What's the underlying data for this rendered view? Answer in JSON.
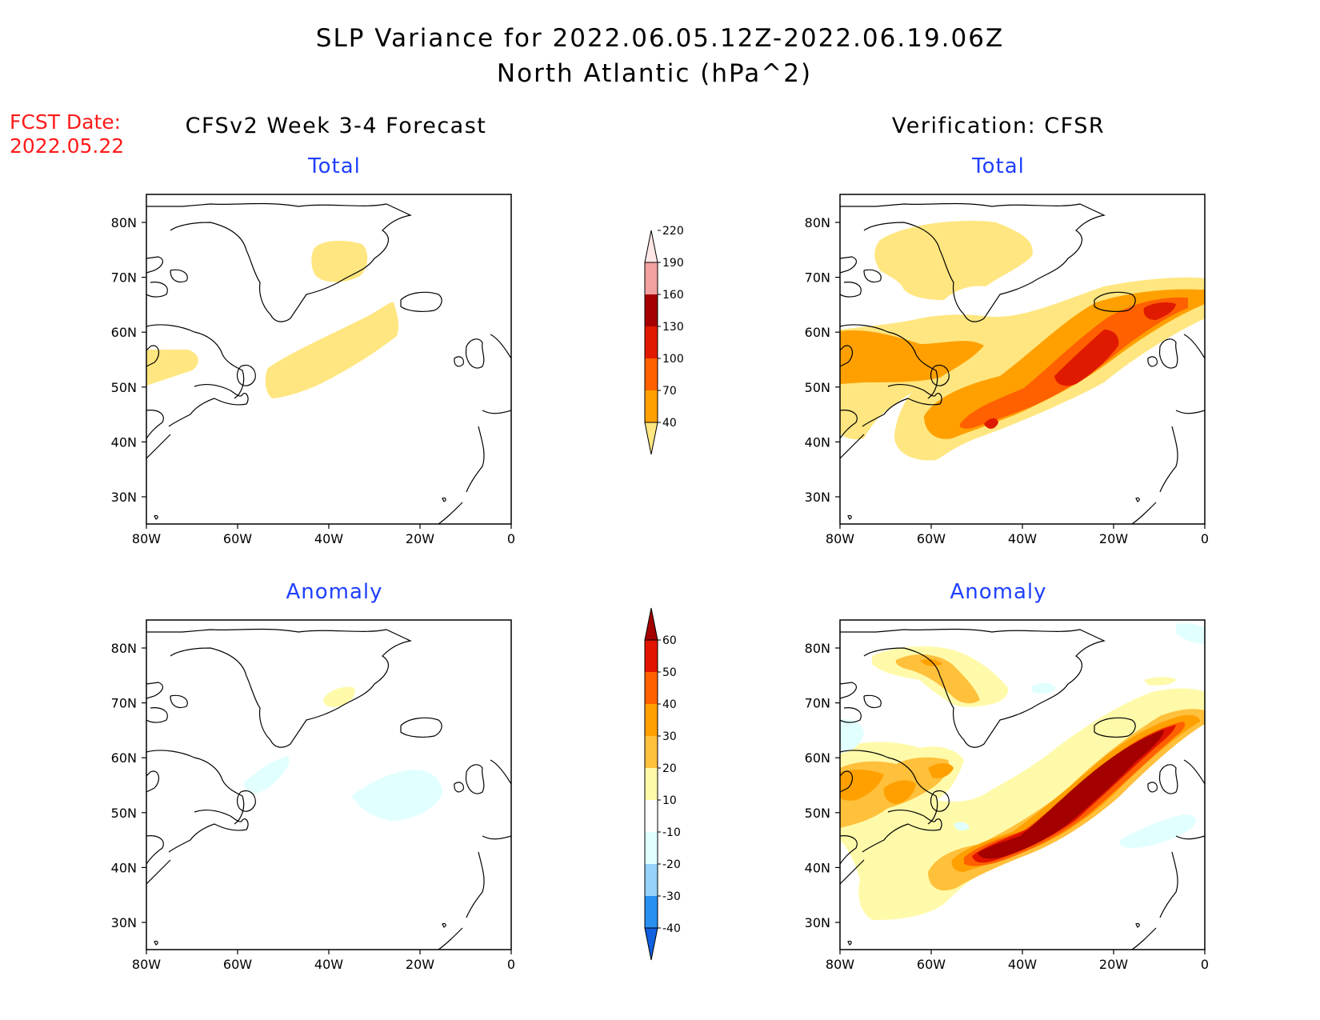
{
  "header": {
    "title_line1": "SLP Variance for 2022.06.05.12Z-2022.06.19.06Z",
    "title_line2": "North Atlantic (hPa^2)",
    "fcst_label": "FCST Date:",
    "fcst_date": "2022.05.22",
    "left_column_title": "CFSv2 Week 3-4 Forecast",
    "right_column_title": "Verification: CFSR"
  },
  "panels": [
    {
      "id": "forecast-total",
      "subtitle": "Total"
    },
    {
      "id": "verification-total",
      "subtitle": "Total"
    },
    {
      "id": "forecast-anomaly",
      "subtitle": "Anomaly"
    },
    {
      "id": "verification-anomaly",
      "subtitle": "Anomaly"
    }
  ],
  "axes": {
    "lat_labels": [
      "80N",
      "70N",
      "60N",
      "50N",
      "40N",
      "30N"
    ],
    "lon_labels": [
      "80W",
      "60W",
      "40W",
      "20W",
      "0"
    ]
  },
  "colorbars": {
    "total": {
      "levels": [
        "40",
        "70",
        "100",
        "130",
        "160",
        "190",
        "220"
      ],
      "colors": [
        "#ffe680",
        "#ffa000",
        "#ff6000",
        "#e01a00",
        "#a50000",
        "#f2a0a0",
        "#ffe6e6"
      ]
    },
    "anomaly": {
      "levels": [
        "-40",
        "-30",
        "-20",
        "-10",
        "10",
        "20",
        "30",
        "40",
        "50",
        "60"
      ],
      "colors": [
        "#1060e0",
        "#2890f0",
        "#96d2fa",
        "#e1ffff",
        "#ffffff",
        "#fffaaa",
        "#ffc03c",
        "#ffa000",
        "#ff6000",
        "#e11400",
        "#a50000"
      ]
    }
  },
  "colors": {
    "light_yellow": "#ffe680",
    "orange": "#ffa000",
    "dark_orange": "#ff6000",
    "red": "#e01a00",
    "dark_red": "#a50000",
    "pale_yellow": "#fffaaa",
    "pale_cyan": "#e1ffff",
    "light_blue": "#96d2fa",
    "panel_title_blue": "#1f3fff",
    "fcst_red": "#ff1a1a"
  }
}
